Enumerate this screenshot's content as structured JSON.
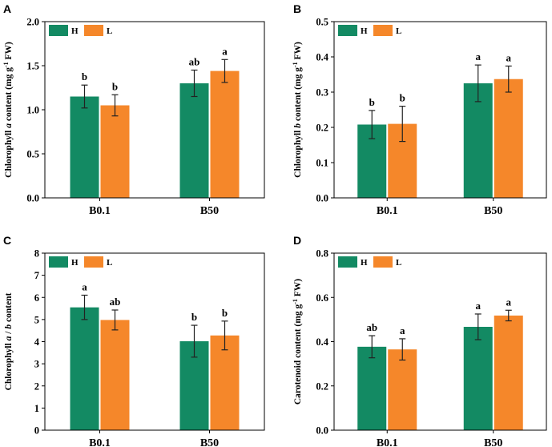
{
  "chart_data": [
    {
      "type": "bar",
      "panel": "A",
      "categories": [
        "B0.1",
        "B50"
      ],
      "series": [
        {
          "name": "H",
          "color": "#138a63",
          "values": [
            1.15,
            1.3
          ],
          "errors": [
            0.13,
            0.15
          ],
          "labels": [
            "b",
            "ab"
          ]
        },
        {
          "name": "L",
          "color": "#f5872a",
          "values": [
            1.05,
            1.44
          ],
          "errors": [
            0.12,
            0.13
          ],
          "labels": [
            "b",
            "a"
          ]
        }
      ],
      "ylabel_parts": [
        "Chlorophyll ",
        "a",
        " content (mg g",
        "-1",
        " FW)"
      ],
      "ylim": [
        0,
        2.0
      ],
      "yticks": [
        "0.0",
        "0.5",
        "1.0",
        "1.5",
        "2.0"
      ],
      "ytick_values": [
        0,
        0.5,
        1.0,
        1.5,
        2.0
      ],
      "legend": [
        "H",
        "L"
      ]
    },
    {
      "type": "bar",
      "panel": "B",
      "categories": [
        "B0.1",
        "B50"
      ],
      "series": [
        {
          "name": "H",
          "color": "#138a63",
          "values": [
            0.208,
            0.325
          ],
          "errors": [
            0.04,
            0.052
          ],
          "labels": [
            "b",
            "a"
          ]
        },
        {
          "name": "L",
          "color": "#f5872a",
          "values": [
            0.21,
            0.337
          ],
          "errors": [
            0.05,
            0.037
          ],
          "labels": [
            "b",
            "a"
          ]
        }
      ],
      "ylabel_parts": [
        "Chlorophyll ",
        "b",
        " content (mg g",
        "-1",
        " FW)"
      ],
      "ylim": [
        0,
        0.5
      ],
      "yticks": [
        "0.0",
        "0.1",
        "0.2",
        "0.3",
        "0.4",
        "0.5"
      ],
      "ytick_values": [
        0,
        0.1,
        0.2,
        0.3,
        0.4,
        0.5
      ],
      "legend": [
        "H",
        "L"
      ]
    },
    {
      "type": "bar",
      "panel": "C",
      "categories": [
        "B0.1",
        "B50"
      ],
      "series": [
        {
          "name": "H",
          "color": "#138a63",
          "values": [
            5.55,
            4.02
          ],
          "errors": [
            0.55,
            0.72
          ],
          "labels": [
            "a",
            "b"
          ]
        },
        {
          "name": "L",
          "color": "#f5872a",
          "values": [
            4.98,
            4.28
          ],
          "errors": [
            0.45,
            0.65
          ],
          "labels": [
            "ab",
            "b"
          ]
        }
      ],
      "ylabel_parts": [
        "Chlorophyll ",
        "a",
        " / ",
        "b",
        " content"
      ],
      "ylim": [
        0,
        8
      ],
      "yticks": [
        "0",
        "1",
        "2",
        "3",
        "4",
        "5",
        "6",
        "7",
        "8"
      ],
      "ytick_values": [
        0,
        1,
        2,
        3,
        4,
        5,
        6,
        7,
        8
      ],
      "legend": [
        "H",
        "L"
      ]
    },
    {
      "type": "bar",
      "panel": "D",
      "categories": [
        "B0.1",
        "B50"
      ],
      "series": [
        {
          "name": "H",
          "color": "#138a63",
          "values": [
            0.377,
            0.467
          ],
          "errors": [
            0.05,
            0.058
          ],
          "labels": [
            "ab",
            "a"
          ]
        },
        {
          "name": "L",
          "color": "#f5872a",
          "values": [
            0.365,
            0.518
          ],
          "errors": [
            0.048,
            0.024
          ],
          "labels": [
            "a",
            "a"
          ]
        }
      ],
      "ylabel_parts": [
        "Carotenoid content (mg g",
        "-1",
        " FW)"
      ],
      "ylim": [
        0,
        0.8
      ],
      "yticks": [
        "0.0",
        "0.2",
        "0.4",
        "0.6",
        "0.8"
      ],
      "ytick_values": [
        0,
        0.2,
        0.4,
        0.6,
        0.8
      ],
      "legend": [
        "H",
        "L"
      ]
    }
  ]
}
